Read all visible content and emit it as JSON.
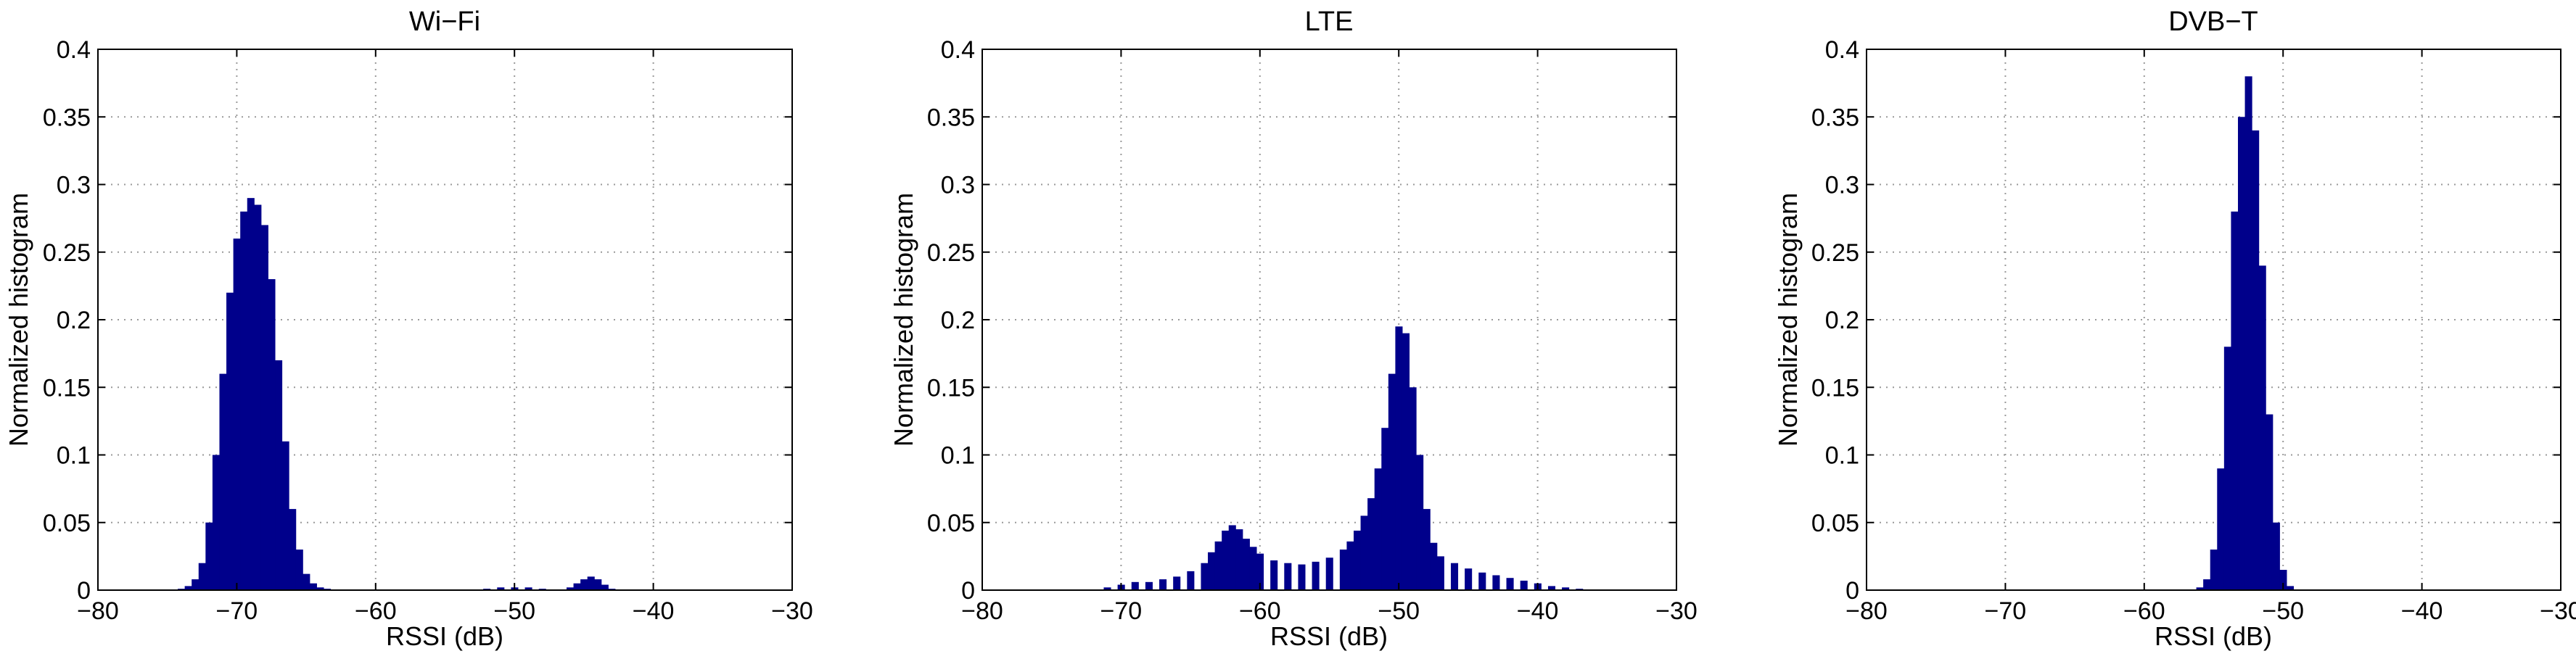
{
  "chart_data": [
    {
      "type": "bar",
      "title": "Wi−Fi",
      "xlabel": "RSSI (dB)",
      "ylabel": "Normalized histogram",
      "xlim": [
        -80,
        -30
      ],
      "ylim": [
        0,
        0.4
      ],
      "xticks": [
        "−80",
        "−70",
        "−60",
        "−50",
        "−40",
        "−30"
      ],
      "yticks": [
        "0",
        "0.05",
        "0.1",
        "0.15",
        "0.2",
        "0.25",
        "0.3",
        "0.35",
        "0.4"
      ],
      "grid": true,
      "color": "#00008B",
      "x": [
        -74,
        -73.5,
        -73,
        -72.5,
        -72,
        -71.5,
        -71,
        -70.5,
        -70,
        -69.5,
        -69,
        -68.5,
        -68,
        -67.5,
        -67,
        -66.5,
        -66,
        -65.5,
        -65,
        -64.5,
        -64,
        -63.5,
        -52,
        -51,
        -50,
        -49,
        -48,
        -46,
        -45.5,
        -45,
        -44.5,
        -44,
        -43.5,
        -43
      ],
      "values": [
        0.001,
        0.003,
        0.008,
        0.02,
        0.05,
        0.1,
        0.16,
        0.22,
        0.26,
        0.28,
        0.29,
        0.285,
        0.27,
        0.23,
        0.17,
        0.11,
        0.06,
        0.03,
        0.012,
        0.005,
        0.002,
        0.001,
        0.001,
        0.002,
        0.002,
        0.002,
        0.001,
        0.002,
        0.005,
        0.008,
        0.01,
        0.008,
        0.004,
        0.001
      ]
    },
    {
      "type": "bar",
      "title": "LTE",
      "xlabel": "RSSI (dB)",
      "ylabel": "Normalized histogram",
      "xlim": [
        -80,
        -30
      ],
      "ylim": [
        0,
        0.4
      ],
      "xticks": [
        "−80",
        "−70",
        "−60",
        "−50",
        "−40",
        "−30"
      ],
      "yticks": [
        "0",
        "0.05",
        "0.1",
        "0.15",
        "0.2",
        "0.25",
        "0.3",
        "0.35",
        "0.4"
      ],
      "grid": true,
      "color": "#00008B",
      "x": [
        -71,
        -70,
        -69,
        -68,
        -67,
        -66,
        -65,
        -64,
        -63.5,
        -63,
        -62.5,
        -62,
        -61.5,
        -61,
        -60.5,
        -60,
        -59,
        -58,
        -57,
        -56,
        -55,
        -54,
        -53.5,
        -53,
        -52.5,
        -52,
        -51.5,
        -51,
        -50.5,
        -50,
        -49.5,
        -49,
        -48.5,
        -48,
        -47.5,
        -47,
        -46,
        -45,
        -44,
        -43,
        -42,
        -41,
        -40,
        -39,
        -38,
        -37,
        -36.5
      ],
      "values": [
        0.002,
        0.004,
        0.006,
        0.006,
        0.008,
        0.01,
        0.014,
        0.02,
        0.028,
        0.036,
        0.044,
        0.048,
        0.045,
        0.038,
        0.032,
        0.027,
        0.022,
        0.02,
        0.019,
        0.021,
        0.024,
        0.03,
        0.036,
        0.044,
        0.055,
        0.068,
        0.09,
        0.12,
        0.16,
        0.195,
        0.19,
        0.15,
        0.1,
        0.06,
        0.035,
        0.025,
        0.02,
        0.016,
        0.013,
        0.011,
        0.009,
        0.007,
        0.005,
        0.003,
        0.002,
        0.001,
        0.0005
      ]
    },
    {
      "type": "bar",
      "title": "DVB−T",
      "xlabel": "RSSI (dB)",
      "ylabel": "Normalized histogram",
      "xlim": [
        -80,
        -30
      ],
      "ylim": [
        0,
        0.4
      ],
      "xticks": [
        "−80",
        "−70",
        "−60",
        "−50",
        "−40",
        "−30"
      ],
      "yticks": [
        "0",
        "0.05",
        "0.1",
        "0.15",
        "0.2",
        "0.25",
        "0.3",
        "0.35",
        "0.4"
      ],
      "grid": true,
      "color": "#00008B",
      "x": [
        -56,
        -55.5,
        -55,
        -54.5,
        -54,
        -53.5,
        -53,
        -52.5,
        -52,
        -51.5,
        -51,
        -50.5,
        -50,
        -49.5
      ],
      "values": [
        0.002,
        0.008,
        0.03,
        0.09,
        0.18,
        0.28,
        0.35,
        0.38,
        0.34,
        0.24,
        0.13,
        0.05,
        0.015,
        0.003
      ]
    }
  ]
}
